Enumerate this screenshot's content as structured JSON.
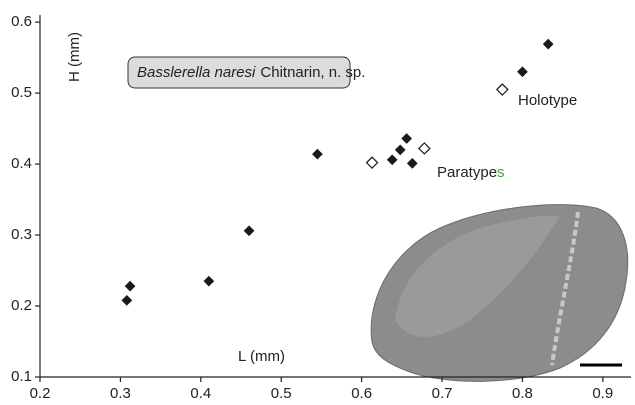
{
  "chart_data": {
    "type": "scatter",
    "x_label": "L (mm)",
    "y_label": "H (mm)",
    "species_label": {
      "italic": "Basslerella naresi",
      "rest": "Chitnarin, n. sp."
    },
    "holotype_label": "Holotype",
    "paratypes_label": {
      "main": "Paratype",
      "suffix": "s",
      "suffix_color": "#3aaa35"
    },
    "xlim": [
      0.2,
      0.935
    ],
    "ylim": [
      0.1,
      0.61
    ],
    "xticks": [
      0.2,
      0.3,
      0.4,
      0.5,
      0.6,
      0.7,
      0.8,
      0.9
    ],
    "yticks": [
      0.1,
      0.2,
      0.3,
      0.4,
      0.5,
      0.6
    ],
    "series": [
      {
        "marker": "filled",
        "color": "#1a1a1a",
        "x": [
          0.308,
          0.312,
          0.41,
          0.46,
          0.545,
          0.638,
          0.648,
          0.656,
          0.663,
          0.8,
          0.832
        ],
        "values": [
          0.208,
          0.228,
          0.235,
          0.306,
          0.414,
          0.406,
          0.42,
          0.436,
          0.401,
          0.53,
          0.569
        ]
      },
      {
        "marker": "open",
        "color": "#1a1a1a",
        "x": [
          0.613,
          0.678,
          0.775
        ],
        "values": [
          0.402,
          0.422,
          0.505
        ]
      }
    ]
  }
}
